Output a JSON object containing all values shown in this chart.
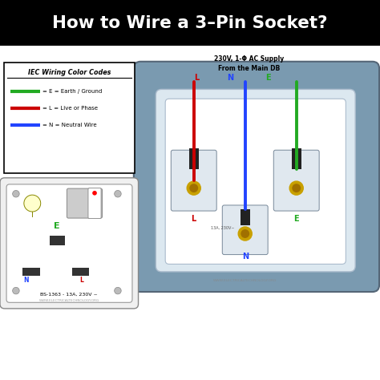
{
  "title": "How to Wire a 3–Pin Socket?",
  "title_bg": "#000000",
  "title_color": "#ffffff",
  "bg_color": "#ffffff",
  "supply_text_line1": "230V, 1-Φ AC Supply",
  "supply_text_line2": "From the Main DB",
  "legend_title": "IEC Wiring Color Codes",
  "legend_items": [
    {
      "color": "#22aa22",
      "label": "= E = Earth / Ground"
    },
    {
      "color": "#cc0000",
      "label": "= L = Live or Phase"
    },
    {
      "color": "#2244ff",
      "label": "= N = Neutral Wire"
    }
  ],
  "wire_colors": {
    "L": "#cc0000",
    "N": "#2244ff",
    "E": "#22aa22"
  },
  "terminal_labels": {
    "L": "#cc0000",
    "N": "#2244ff",
    "E": "#22aa22"
  },
  "socket_bg": "#7a9ab0",
  "socket_face": "#e8eef2",
  "watermark": "WWW.ELECTRICALTECHNOLOGY.ORG",
  "bs_text": "BS-1363 - 13A, 230V ~"
}
